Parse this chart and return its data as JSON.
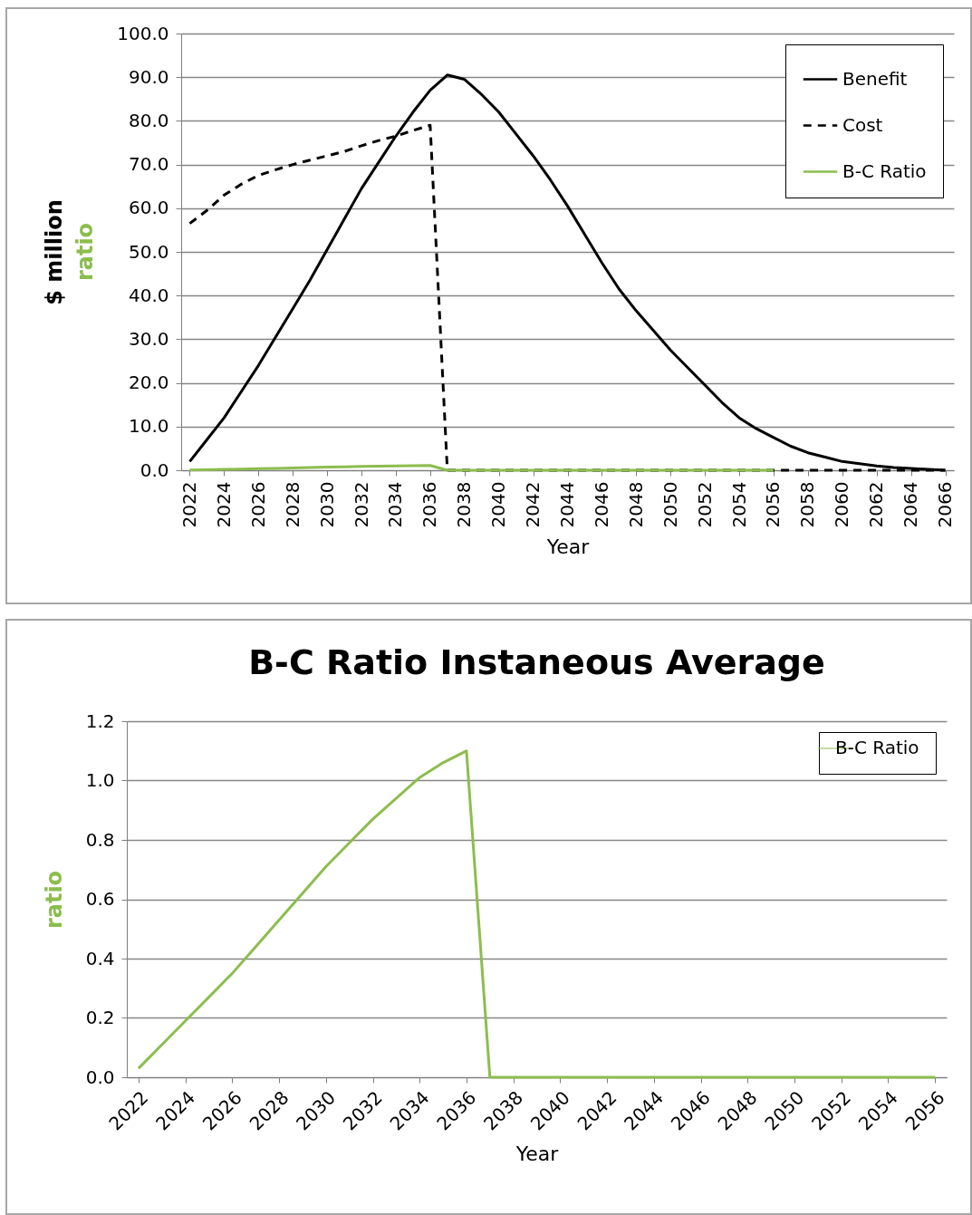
{
  "chart_data": [
    {
      "type": "line",
      "xlabel": "Year",
      "ylabel": "$ million",
      "annotations": [
        "ratio"
      ],
      "x": [
        2022,
        2023,
        2024,
        2025,
        2026,
        2027,
        2028,
        2029,
        2030,
        2031,
        2032,
        2033,
        2034,
        2035,
        2036,
        2037,
        2038,
        2039,
        2040,
        2041,
        2042,
        2043,
        2044,
        2045,
        2046,
        2047,
        2048,
        2049,
        2050,
        2051,
        2052,
        2053,
        2054,
        2055,
        2056,
        2057,
        2058,
        2059,
        2060,
        2061,
        2062,
        2063,
        2064,
        2065,
        2066
      ],
      "series": [
        {
          "name": "Benefit",
          "color": "#000000",
          "line_style": "solid",
          "values": [
            2,
            7,
            12,
            18,
            24,
            30.5,
            37,
            43.5,
            50.5,
            57.5,
            64.5,
            70.5,
            76.5,
            82,
            87,
            90.5,
            89.5,
            86,
            82,
            77,
            72,
            66.5,
            60.5,
            54,
            47.5,
            41.5,
            36.5,
            32,
            27.5,
            23.5,
            19.5,
            15.5,
            12,
            9.5,
            7.5,
            5.5,
            4,
            3,
            2,
            1.5,
            1,
            0.6,
            0.4,
            0.2,
            0
          ]
        },
        {
          "name": "Cost",
          "color": "#000000",
          "line_style": "dashed",
          "values": [
            56.5,
            59.5,
            63,
            65.5,
            67.5,
            68.8,
            70,
            71,
            72,
            73,
            74.3,
            75.5,
            76.5,
            77.8,
            79,
            0,
            0,
            0,
            0,
            0,
            0,
            0,
            0,
            0,
            0,
            0,
            0,
            0,
            0,
            0,
            0,
            0,
            0,
            0,
            0,
            0,
            0,
            0,
            0,
            0,
            0,
            0,
            0,
            0,
            0
          ]
        },
        {
          "name": "B-C Ratio",
          "color": "#8cbd4e",
          "line_style": "solid",
          "values": [
            0.03,
            0.11,
            0.19,
            0.27,
            0.35,
            0.44,
            0.53,
            0.62,
            0.71,
            0.79,
            0.87,
            0.94,
            1.01,
            1.06,
            1.1,
            0,
            0,
            0,
            0,
            0,
            0,
            0,
            0,
            0,
            0,
            0,
            0,
            0,
            0,
            0,
            0,
            0,
            0,
            0,
            0,
            null,
            null,
            null,
            null,
            null,
            null,
            null,
            null,
            null,
            null
          ]
        }
      ],
      "xlim": [
        2021.5,
        2066.5
      ],
      "xticks": [
        2022,
        2024,
        2026,
        2028,
        2030,
        2032,
        2034,
        2036,
        2038,
        2040,
        2042,
        2044,
        2046,
        2048,
        2050,
        2052,
        2054,
        2056,
        2058,
        2060,
        2062,
        2064,
        2066
      ],
      "ylim": [
        0,
        100
      ],
      "yticks": [
        {
          "value": 0,
          "label": "0.0"
        },
        {
          "value": 10,
          "label": "10.0"
        },
        {
          "value": 20,
          "label": "20.0"
        },
        {
          "value": 30,
          "label": "30.0"
        },
        {
          "value": 40,
          "label": "40.0"
        },
        {
          "value": 50,
          "label": "50.0"
        },
        {
          "value": 60,
          "label": "60.0"
        },
        {
          "value": 70,
          "label": "70.0"
        },
        {
          "value": 80,
          "label": "80.0"
        },
        {
          "value": 90,
          "label": "90.0"
        },
        {
          "value": 100,
          "label": "100.0"
        }
      ],
      "grid": "y",
      "legend": "top right"
    },
    {
      "type": "line",
      "title": "B-C Ratio Instaneous Average",
      "xlabel": "Year",
      "ylabel": "ratio",
      "x": [
        2022,
        2023,
        2024,
        2025,
        2026,
        2027,
        2028,
        2029,
        2030,
        2031,
        2032,
        2033,
        2034,
        2035,
        2036,
        2037,
        2038,
        2039,
        2040,
        2041,
        2042,
        2043,
        2044,
        2045,
        2046,
        2047,
        2048,
        2049,
        2050,
        2051,
        2052,
        2053,
        2054,
        2055,
        2056
      ],
      "series": [
        {
          "name": "B-C Ratio",
          "color": "#8cbd4e",
          "line_style": "solid",
          "values": [
            0.03,
            0.11,
            0.19,
            0.27,
            0.35,
            0.44,
            0.53,
            0.62,
            0.71,
            0.79,
            0.87,
            0.94,
            1.01,
            1.06,
            1.1,
            0,
            0,
            0,
            0,
            0,
            0,
            0,
            0,
            0,
            0,
            0,
            0,
            0,
            0,
            0,
            0,
            0,
            0,
            0,
            0
          ]
        }
      ],
      "xlim": [
        2021.5,
        2056.5
      ],
      "xticks": [
        2022,
        2024,
        2026,
        2028,
        2030,
        2032,
        2034,
        2036,
        2038,
        2040,
        2042,
        2044,
        2046,
        2048,
        2050,
        2052,
        2054,
        2056
      ],
      "ylim": [
        0,
        1.2
      ],
      "yticks": [
        {
          "value": 0,
          "label": "0.0"
        },
        {
          "value": 0.2,
          "label": "0.2"
        },
        {
          "value": 0.4,
          "label": "0.4"
        },
        {
          "value": 0.6,
          "label": "0.6"
        },
        {
          "value": 0.8,
          "label": "0.8"
        },
        {
          "value": 1,
          "label": "1.0"
        },
        {
          "value": 1.2,
          "label": "1.2"
        }
      ],
      "grid": "y",
      "legend": "top right"
    }
  ]
}
